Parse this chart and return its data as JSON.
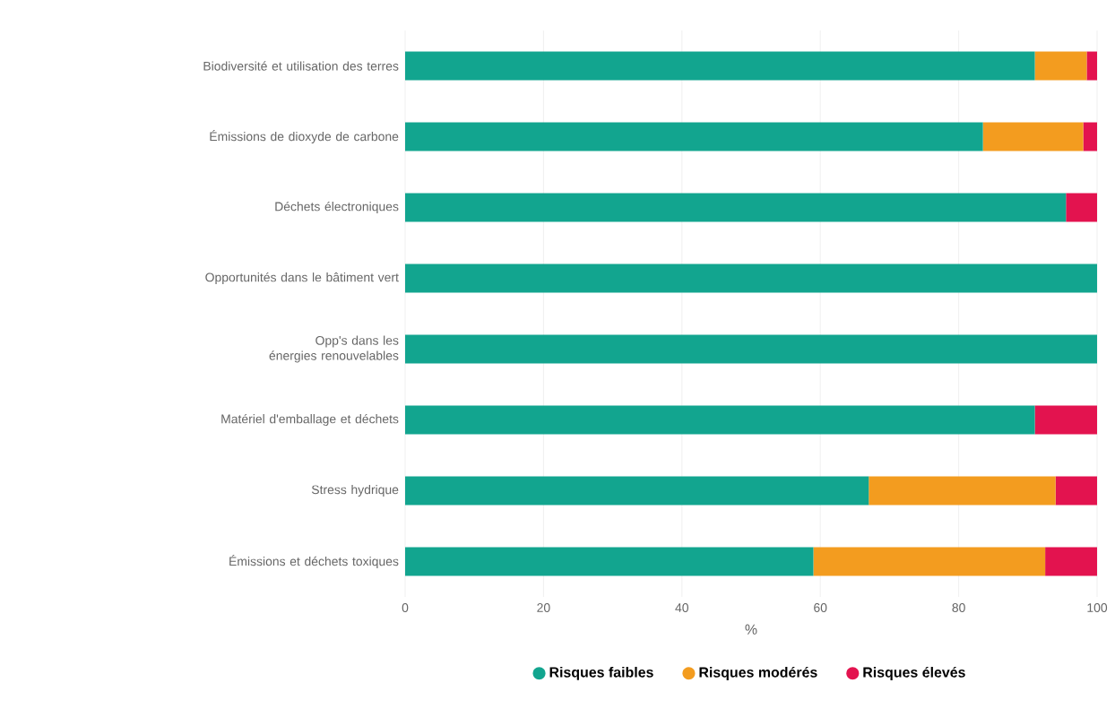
{
  "chart_data": {
    "type": "bar",
    "orientation": "horizontal",
    "stacked": true,
    "xlabel": "%",
    "categories": [
      "Biodiversité et utilisation des terres",
      "Émissions de dioxyde de carbone",
      "Déchets électroniques",
      "Opportunités dans le bâtiment vert",
      "Opp's dans les énergies renouvelables",
      "Matériel d'emballage et déchets",
      "Stress hydrique",
      "Émissions et déchets toxiques"
    ],
    "series": [
      {
        "name": "Risques faibles",
        "color": "#12a58f",
        "values": [
          91,
          83.5,
          95.5,
          100,
          100,
          91,
          67,
          59
        ]
      },
      {
        "name": "Risques modérés",
        "color": "#f39c1f",
        "values": [
          7.5,
          14.5,
          0,
          0,
          0,
          0,
          27,
          33.5
        ]
      },
      {
        "name": "Risques élevés",
        "color": "#e3134f",
        "values": [
          1.5,
          2,
          4.5,
          0,
          0,
          9,
          6,
          7.5
        ]
      }
    ],
    "xlim": [
      0,
      100
    ],
    "xticks": [
      0,
      20,
      40,
      60,
      80,
      100
    ],
    "grid": "x",
    "legend": "bottom",
    "marker": "circle"
  }
}
